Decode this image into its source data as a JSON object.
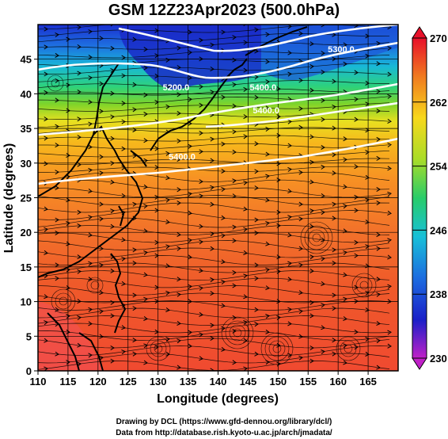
{
  "title": "GSM 12Z23Apr2023 (500.0hPa)",
  "credits": {
    "line1": "Drawing by DCL (https://www.gfd-dennou.org/library/dcl/)",
    "line2": "Data from http://database.rish.kyoto-u.ac.jp/arch/jmadata/"
  },
  "axes": {
    "xlabel": "Longitude (degrees)",
    "ylabel": "Latitude  (degrees)",
    "xlim": [
      110,
      170
    ],
    "ylim": [
      0,
      50
    ],
    "xticks": [
      "110",
      "115",
      "120",
      "125",
      "130",
      "135",
      "140",
      "145",
      "150",
      "155",
      "160",
      "165"
    ],
    "yticks": [
      "0",
      "5",
      "10",
      "15",
      "20",
      "25",
      "30",
      "35",
      "40",
      "45"
    ]
  },
  "colorbar": {
    "range": [
      230,
      270
    ],
    "labels": [
      "270",
      "262",
      "254",
      "246",
      "238",
      "230"
    ]
  },
  "contours": [
    {
      "label": "5400.0",
      "lon": 134,
      "lat": 30.5
    },
    {
      "label": "5400.0",
      "lon": 147.5,
      "lat": 40.5
    },
    {
      "label": "5400.0",
      "lon": 148,
      "lat": 37.2
    },
    {
      "label": "5300.0",
      "lon": 160.5,
      "lat": 46
    },
    {
      "label": "5200.0",
      "lon": 133,
      "lat": 40.5
    }
  ]
}
